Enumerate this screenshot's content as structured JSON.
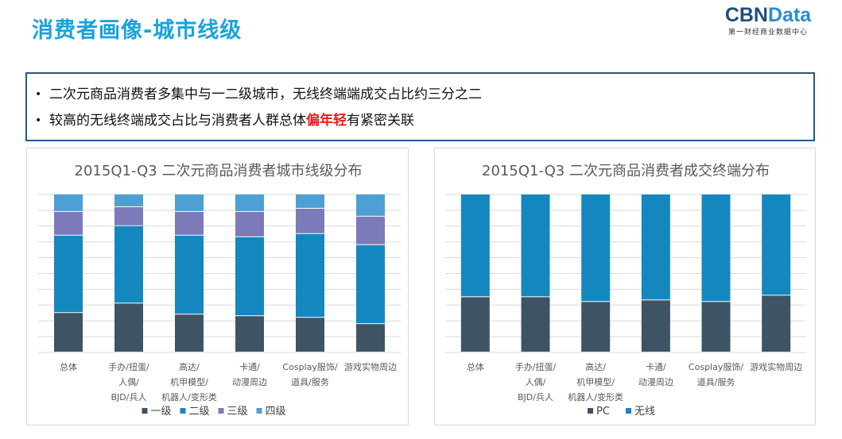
{
  "header": {
    "title": "消费者画像-城市线级",
    "logo_main": "CBNData",
    "logo_sub": "第一财经商业数据中心"
  },
  "callout": {
    "bullet_marker": "•",
    "line1": "二次元商品消费者多集中与一二级城市，无线终端端成交占比约三分之二",
    "line2_before": "较高的无线终端成交占比与消费者人群总体",
    "line2_highlight": "偏年轻",
    "line2_after": "有紧密关联"
  },
  "colors": {
    "title": "#1aa3d9",
    "border": "#1f5a92",
    "highlight": "#e81c1c",
    "tier1": "#3e5464",
    "tier2": "#1587bf",
    "tier3": "#7c7ab8",
    "tier4": "#4e9fd3",
    "pc": "#3e5464",
    "wireless": "#1587bf"
  },
  "chart_data": [
    {
      "type": "bar",
      "stacked": true,
      "title": "2015Q1-Q3 二次元商品消费者城市线级分布",
      "categories": [
        [
          "总体"
        ],
        [
          "手办/扭蛋/",
          "人偶/",
          "BJD/兵人"
        ],
        [
          "高达/",
          "机甲模型/",
          "机器人/变形类"
        ],
        [
          "卡通/",
          "动漫周边"
        ],
        [
          "Cosplay服饰/",
          "道具/服务"
        ],
        [
          "游戏实物周边"
        ]
      ],
      "series": [
        {
          "name": "一级",
          "color": "#3e5464",
          "values": [
            25,
            31,
            24,
            23,
            22,
            18
          ]
        },
        {
          "name": "二级",
          "color": "#1587bf",
          "values": [
            49,
            49,
            50,
            50,
            53,
            50
          ]
        },
        {
          "name": "三级",
          "color": "#7c7ab8",
          "values": [
            15,
            12,
            15,
            16,
            16,
            18
          ]
        },
        {
          "name": "四级",
          "color": "#4e9fd3",
          "values": [
            11,
            8,
            11,
            11,
            9,
            14
          ]
        }
      ],
      "ylim": [
        0,
        100
      ],
      "grid": true,
      "legend": "bottom"
    },
    {
      "type": "bar",
      "stacked": true,
      "title": "2015Q1-Q3 二次元商品消费者成交终端分布",
      "categories": [
        [
          "总体"
        ],
        [
          "手办/扭蛋/",
          "人偶/",
          "BJD/兵人"
        ],
        [
          "高达/",
          "机甲模型/",
          "机器人/变形类"
        ],
        [
          "卡通/",
          "动漫周边"
        ],
        [
          "Cosplay服饰/",
          "道具/服务"
        ],
        [
          "游戏实物周边"
        ]
      ],
      "series": [
        {
          "name": "PC",
          "color": "#3e5464",
          "values": [
            35,
            35,
            32,
            33,
            32,
            36
          ]
        },
        {
          "name": "无线",
          "color": "#1587bf",
          "values": [
            65,
            65,
            68,
            67,
            68,
            64
          ]
        }
      ],
      "ylim": [
        0,
        100
      ],
      "grid": true,
      "legend": "bottom"
    }
  ]
}
